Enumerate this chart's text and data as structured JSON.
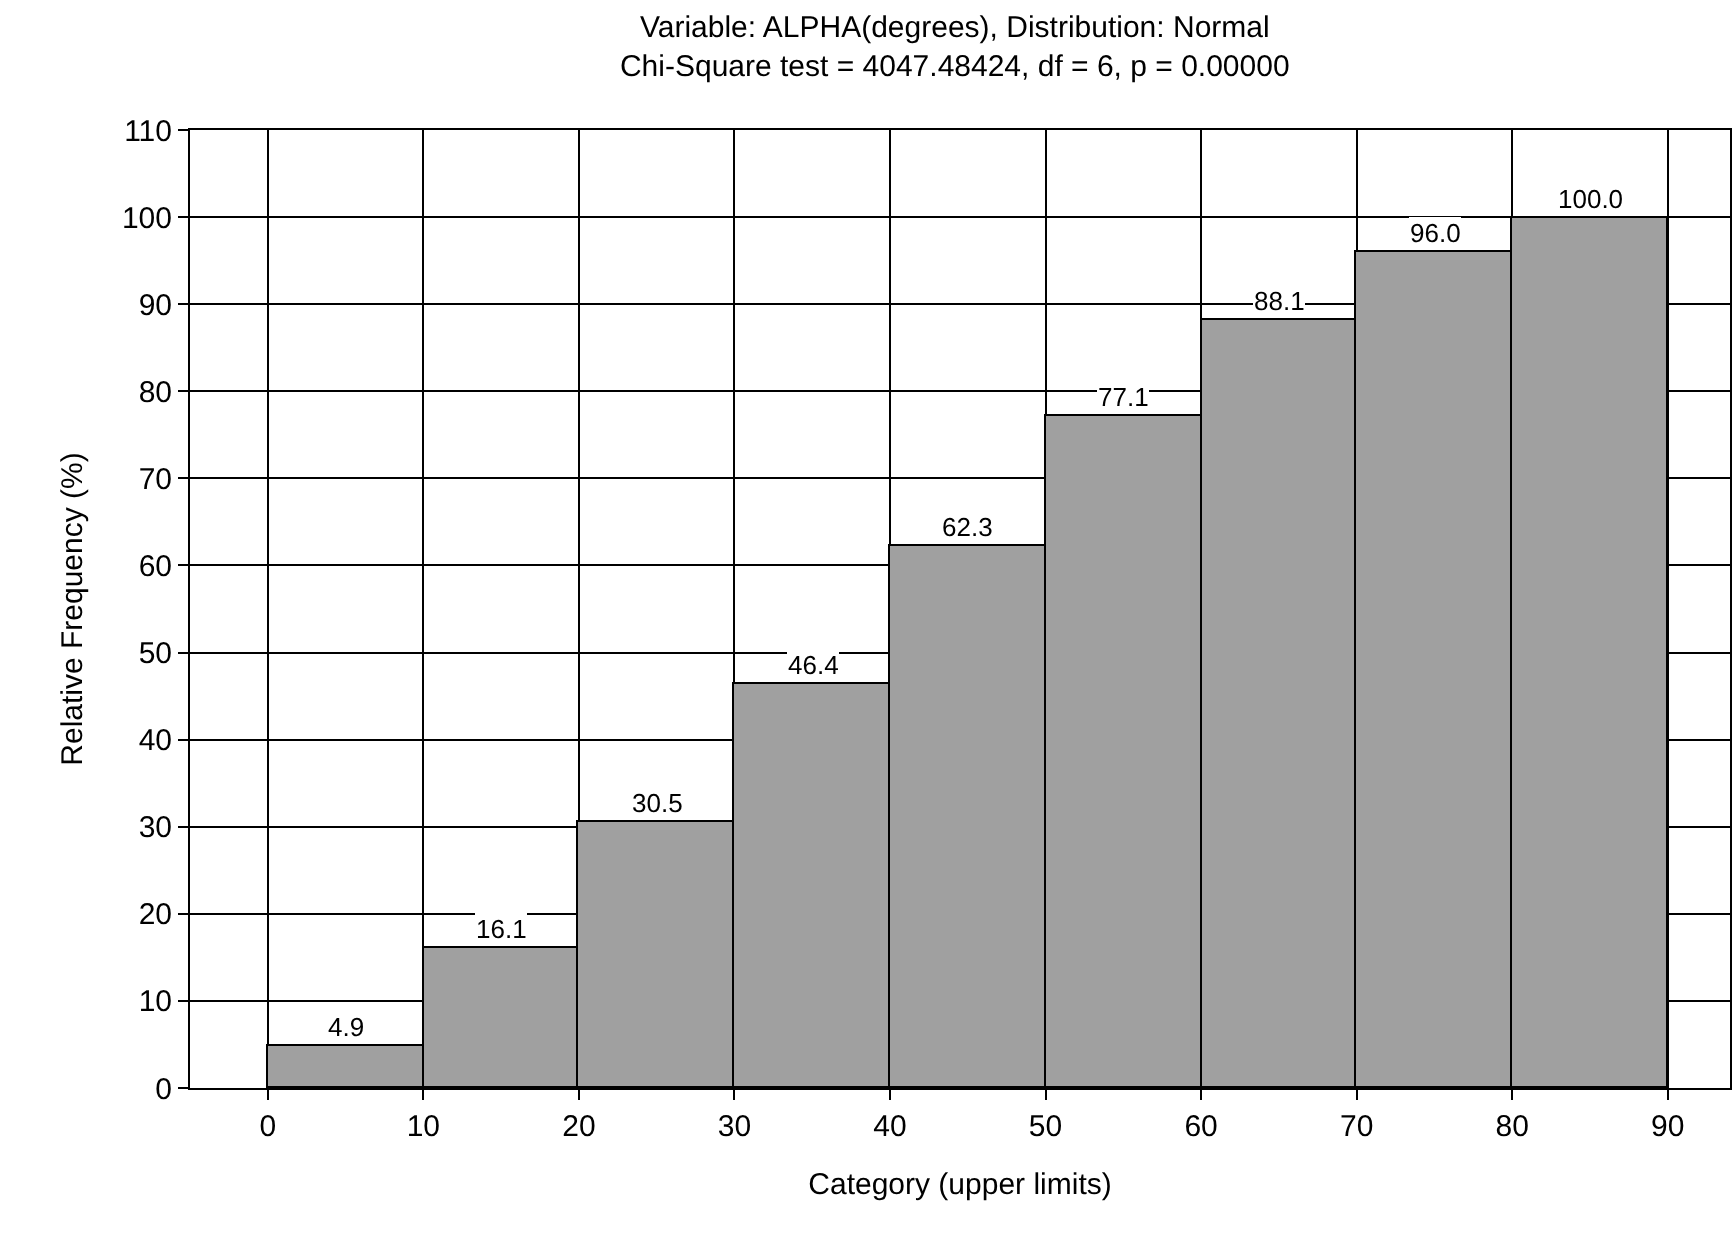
{
  "chart_data": {
    "type": "histogram",
    "title": "Variable: ALPHA(degrees), Distribution: Normal",
    "subtitle": "Chi-Square test = 4047.48424, df = 6, p = 0.00000",
    "xlabel": "Category (upper limits)",
    "ylabel": "Relative Frequency (%)",
    "bins": [
      0,
      10,
      20,
      30,
      40,
      50,
      60,
      70,
      80,
      90
    ],
    "values": [
      4.9,
      16.1,
      30.5,
      46.4,
      62.3,
      77.1,
      88.1,
      96.0,
      100.0
    ],
    "value_labels": [
      "4.9",
      "16.1",
      "30.5",
      "46.4",
      "62.3",
      "77.1",
      "88.1",
      "96.0",
      "100.0"
    ],
    "color": "#a0a0a0",
    "xlim": [
      -5,
      94
    ],
    "xticks": [
      0,
      10,
      20,
      30,
      40,
      50,
      60,
      70,
      80,
      90
    ],
    "ylim": [
      0,
      110
    ],
    "yticks": [
      0,
      10,
      20,
      30,
      40,
      50,
      60,
      70,
      80,
      90,
      100,
      110
    ],
    "grid": true
  }
}
